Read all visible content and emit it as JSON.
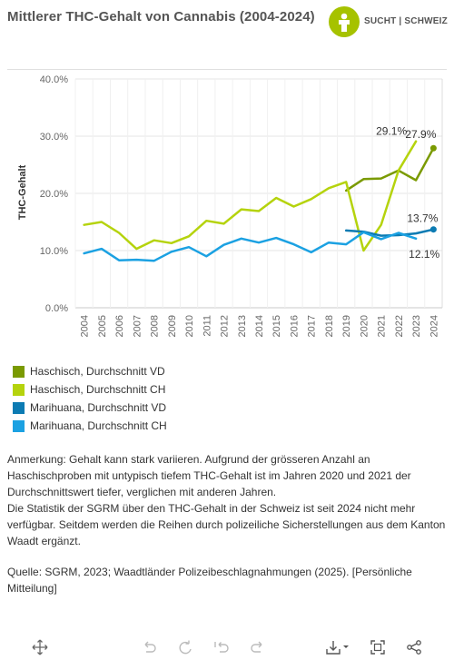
{
  "title": "Mittlerer THC-Gehalt von Cannabis (2004-2024)",
  "logo": {
    "text": "SUCHT | SCHWEIZ",
    "color": "#a6c200"
  },
  "chart_data": {
    "type": "line",
    "title": "Mittlerer THC-Gehalt von Cannabis (2004-2024)",
    "ylabel": "THC-Gehalt",
    "xlabel": "",
    "ylim": [
      0,
      40
    ],
    "yticks": [
      "0.0%",
      "10.0%",
      "20.0%",
      "30.0%",
      "40.0%"
    ],
    "ytick_values": [
      0,
      10,
      20,
      30,
      40
    ],
    "x": [
      "2004",
      "2005",
      "2006",
      "2007",
      "2008",
      "2009",
      "2010",
      "2011",
      "2012",
      "2013",
      "2014",
      "2015",
      "2016",
      "2017",
      "2018",
      "2019",
      "2020",
      "2021",
      "2022",
      "2023",
      "2024"
    ],
    "grid": true,
    "series": [
      {
        "name": "Haschisch, Durchschnitt VD",
        "color": "#7a9a01",
        "values": [
          null,
          null,
          null,
          null,
          null,
          null,
          null,
          null,
          null,
          null,
          null,
          null,
          null,
          null,
          null,
          20.5,
          22.5,
          22.6,
          24.0,
          22.3,
          27.9
        ],
        "label_index": 20,
        "label": "27.9%",
        "endpoint": true
      },
      {
        "name": "Haschisch, Durchschnitt CH",
        "color": "#b5d30d",
        "values": [
          14.5,
          15.0,
          13.1,
          10.3,
          11.8,
          11.3,
          12.5,
          15.2,
          14.7,
          17.2,
          16.9,
          19.2,
          17.7,
          19.0,
          20.9,
          22.0,
          10.0,
          14.5,
          24.0,
          29.1,
          null
        ],
        "label_index": 19,
        "label": "29.1%",
        "endpoint": false
      },
      {
        "name": "Marihuana, Durchschnitt VD",
        "color": "#0c7bb3",
        "values": [
          null,
          null,
          null,
          null,
          null,
          null,
          null,
          null,
          null,
          null,
          null,
          null,
          null,
          null,
          null,
          13.5,
          13.3,
          12.6,
          12.7,
          13.0,
          13.7
        ],
        "label_index": 20,
        "label": "13.7%",
        "endpoint": true
      },
      {
        "name": "Marihuana, Durchschnitt CH",
        "color": "#1ba1e2",
        "values": [
          9.5,
          10.3,
          8.3,
          8.4,
          8.2,
          9.8,
          10.6,
          9.0,
          11.0,
          12.1,
          11.4,
          12.2,
          11.1,
          9.7,
          11.4,
          11.1,
          13.2,
          12.0,
          13.1,
          12.1,
          null
        ],
        "label_index": 19,
        "label": "12.1%",
        "endpoint": false
      }
    ]
  },
  "legend": [
    {
      "label": "Haschisch, Durchschnitt VD",
      "color": "#7a9a01"
    },
    {
      "label": "Haschisch, Durchschnitt CH",
      "color": "#b5d30d"
    },
    {
      "label": "Marihuana, Durchschnitt VD",
      "color": "#0c7bb3"
    },
    {
      "label": "Marihuana, Durchschnitt CH",
      "color": "#1ba1e2"
    }
  ],
  "note": {
    "p1": "Anmerkung: Gehalt kann stark variieren. Aufgrund der grösseren Anzahl an Haschischproben mit untypisch tiefem THC-Gehalt ist im Jahren 2020 und 2021 der Durchschnittswert tiefer, verglichen mit anderen Jahren.",
    "p2": "Die Statistik der SGRM über den THC-Gehalt in der Schweiz ist seit 2024 nicht mehr verfügbar. Seitdem werden die Reihen durch polizeiliche Sicherstellungen aus dem Kanton Waadt ergänzt."
  },
  "source": "Quelle: SGRM, 2023; Waadtländer Polizeibeschlagnahmungen (2025). [Persönliche Mitteilung]",
  "toolbar": {
    "icons": [
      "move-icon",
      "undo-icon",
      "redo-icon",
      "reset-icon",
      "download-icon",
      "fullscreen-icon",
      "share-icon"
    ]
  }
}
